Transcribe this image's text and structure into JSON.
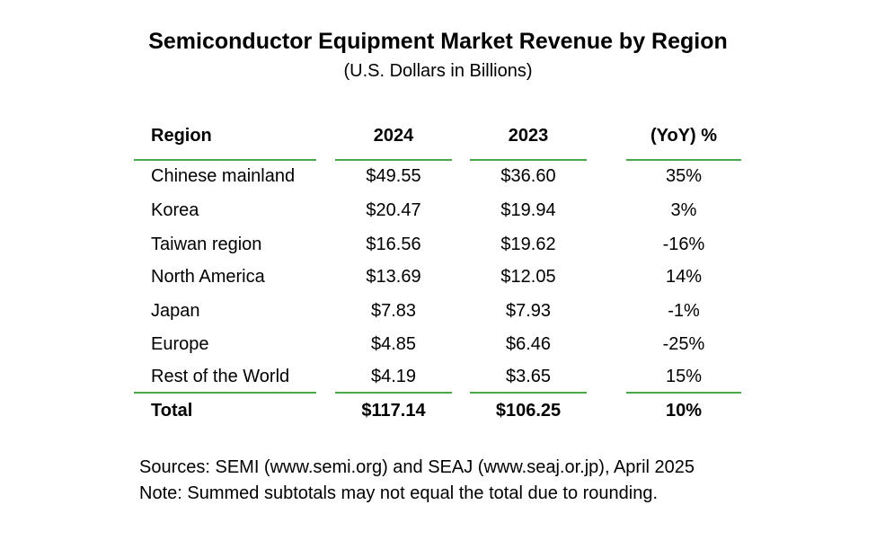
{
  "title": "Semiconductor Equipment Market Revenue by Region",
  "subtitle": "(U.S. Dollars in Billions)",
  "table": {
    "headers": [
      "Region",
      "2024",
      "2023",
      "(YoY) %"
    ],
    "rows": [
      {
        "region": "Chinese mainland",
        "y2024": "$49.55",
        "y2023": "$36.60",
        "yoy": "35%"
      },
      {
        "region": "Korea",
        "y2024": "$20.47",
        "y2023": "$19.94",
        "yoy": "3%"
      },
      {
        "region": "Taiwan region",
        "y2024": "$16.56",
        "y2023": "$19.62",
        "yoy": "-16%"
      },
      {
        "region": "North America",
        "y2024": "$13.69",
        "y2023": "$12.05",
        "yoy": "14%"
      },
      {
        "region": "Japan",
        "y2024": "$7.83",
        "y2023": "$7.93",
        "yoy": "-1%"
      },
      {
        "region": "Europe",
        "y2024": "$4.85",
        "y2023": "$6.46",
        "yoy": "-25%"
      },
      {
        "region": "Rest of the World",
        "y2024": "$4.19",
        "y2023": "$3.65",
        "yoy": "15%"
      }
    ],
    "total": {
      "region": "Total",
      "y2024": "$117.14",
      "y2023": "$106.25",
      "yoy": "10%"
    }
  },
  "notes": {
    "sources": "Sources: SEMI (www.semi.org) and SEAJ (www.seaj.or.jp), April 2025",
    "note": "Note: Summed subtotals may not equal the total due to rounding."
  },
  "colors": {
    "rule": "#4aa84a"
  }
}
